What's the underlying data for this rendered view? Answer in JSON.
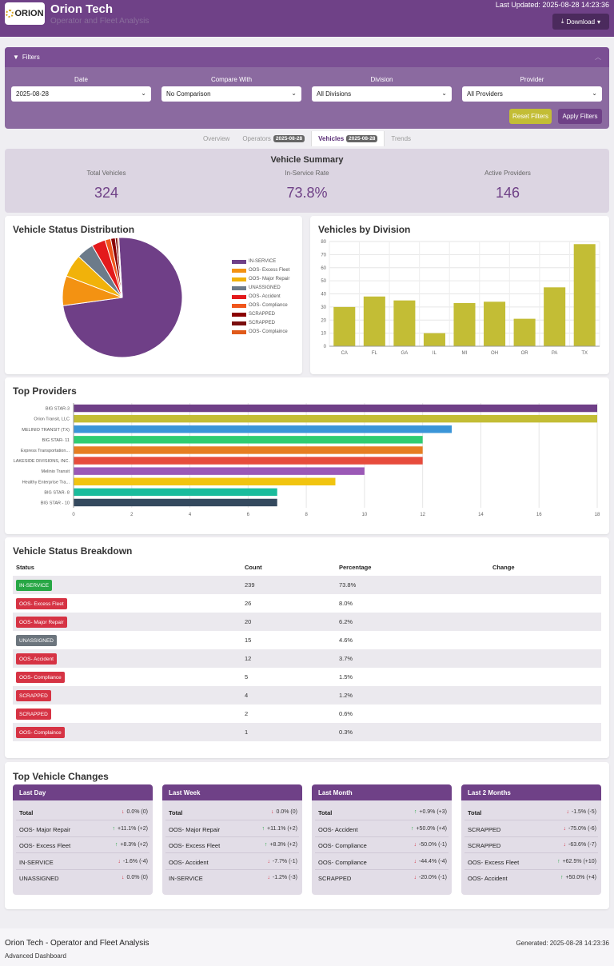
{
  "header": {
    "logo_text": "ORION",
    "title": "Orion Tech",
    "subtitle": "Operator and Fleet Analysis",
    "last_updated": "Last Updated: 2025-08-28 14:23:36",
    "download_label": "Download"
  },
  "filters": {
    "heading": "Filters",
    "date": {
      "label": "Date",
      "value": "2025-08-28"
    },
    "compare": {
      "label": "Compare With",
      "value": "No Comparison"
    },
    "division": {
      "label": "Division",
      "value": "All Divisions"
    },
    "provider": {
      "label": "Provider",
      "value": "All Providers"
    },
    "reset_label": "Reset Filters",
    "apply_label": "Apply Filters"
  },
  "tabs": [
    {
      "label": "Overview",
      "badge": ""
    },
    {
      "label": "Operators",
      "badge": "2025-08-28"
    },
    {
      "label": "Vehicles",
      "badge": "2025-08-28"
    },
    {
      "label": "Trends",
      "badge": ""
    }
  ],
  "summary": {
    "title": "Vehicle Summary",
    "total_label": "Total Vehicles",
    "total_value": "324",
    "rate_label": "In-Service Rate",
    "rate_value": "73.8%",
    "providers_label": "Active Providers",
    "providers_value": "146"
  },
  "colors": {
    "primary": "#6f4187",
    "accent": "#c3bd35",
    "danger": "#d63344",
    "success": "#28a745",
    "secondary": "#6c757d"
  },
  "chart_data": [
    {
      "type": "pie",
      "title": "Vehicle Status Distribution",
      "labels": [
        "IN-SERVICE",
        "OOS- Excess Fleet",
        "OOS- Major Repair",
        "UNASSIGNED",
        "OOS- Accident",
        "OOS- Compliance",
        "SCRAPPED",
        "SCRAPPED",
        "OOS- Complaince"
      ],
      "values": [
        239,
        26,
        20,
        15,
        12,
        5,
        4,
        2,
        1
      ],
      "colors": [
        "#6f3f87",
        "#f39212",
        "#f1b20a",
        "#6c7b8a",
        "#e31a1c",
        "#f0561c",
        "#8b0000",
        "#7a0d0d",
        "#e05a1a"
      ],
      "legend": "right"
    },
    {
      "type": "bar",
      "title": "Vehicles by Division",
      "categories": [
        "CA",
        "FL",
        "GA",
        "IL",
        "MI",
        "OH",
        "OR",
        "PA",
        "TX"
      ],
      "values": [
        30,
        38,
        35,
        10,
        33,
        34,
        21,
        45,
        78
      ],
      "ylim": [
        0,
        80
      ],
      "yticks": [
        0,
        10,
        20,
        30,
        40,
        50,
        60,
        70,
        80
      ],
      "color": "#c3bd35",
      "grid": true
    },
    {
      "type": "bar",
      "orientation": "horizontal",
      "title": "Top Providers",
      "categories": [
        "BIG STAR-3",
        "Orion Transit, LLC",
        "MELINIO TRANSIT (TX)",
        "BIG STAR- 11",
        "Express Transportation...",
        "LAKESIDE DIVISIONS, INC.",
        "Melinio Transit",
        "Healthy Enterprise Tra...",
        "BIG STAR- 8",
        "BIG STAR - 10"
      ],
      "values": [
        18,
        18,
        13,
        12,
        12,
        12,
        10,
        9,
        7,
        7
      ],
      "colors": [
        "#6f3f87",
        "#c3bd35",
        "#3a95d8",
        "#2ecc71",
        "#e67e22",
        "#e74c3c",
        "#9b59b6",
        "#f1c40f",
        "#1abc9c",
        "#34495e"
      ],
      "xlim": [
        0,
        18
      ],
      "xticks": [
        0,
        2,
        4,
        6,
        8,
        10,
        12,
        14,
        16,
        18
      ],
      "grid": true
    }
  ],
  "breakdown": {
    "title": "Vehicle Status Breakdown",
    "headers": [
      "Status",
      "Count",
      "Percentage",
      "Change"
    ],
    "rows": [
      {
        "status": "IN-SERVICE",
        "count": "239",
        "pct": "73.8%",
        "change": "",
        "color": "#28a745"
      },
      {
        "status": "OOS- Excess Fleet",
        "count": "26",
        "pct": "8.0%",
        "change": "",
        "color": "#d63344"
      },
      {
        "status": "OOS- Major Repair",
        "count": "20",
        "pct": "6.2%",
        "change": "",
        "color": "#d63344"
      },
      {
        "status": "UNASSIGNED",
        "count": "15",
        "pct": "4.6%",
        "change": "",
        "color": "#6c757d"
      },
      {
        "status": "OOS- Accident",
        "count": "12",
        "pct": "3.7%",
        "change": "",
        "color": "#d63344"
      },
      {
        "status": "OOS- Compliance",
        "count": "5",
        "pct": "1.5%",
        "change": "",
        "color": "#d63344"
      },
      {
        "status": "SCRAPPED",
        "count": "4",
        "pct": "1.2%",
        "change": "",
        "color": "#d63344"
      },
      {
        "status": "SCRAPPED",
        "count": "2",
        "pct": "0.6%",
        "change": "",
        "color": "#d63344"
      },
      {
        "status": "OOS- Complaince",
        "count": "1",
        "pct": "0.3%",
        "change": "",
        "color": "#d63344"
      }
    ]
  },
  "changes": {
    "title": "Top Vehicle Changes",
    "cards": [
      {
        "heading": "Last Day",
        "rows": [
          {
            "label": "Total",
            "dir": "down",
            "value": "0.0% (0)"
          },
          {
            "label": "OOS- Major Repair",
            "dir": "up",
            "value": "+11.1% (+2)"
          },
          {
            "label": "OOS- Excess Fleet",
            "dir": "up",
            "value": "+8.3% (+2)"
          },
          {
            "label": "IN-SERVICE",
            "dir": "down",
            "value": "-1.6% (-4)"
          },
          {
            "label": "UNASSIGNED",
            "dir": "down",
            "value": "0.0% (0)"
          }
        ]
      },
      {
        "heading": "Last Week",
        "rows": [
          {
            "label": "Total",
            "dir": "down",
            "value": "0.0% (0)"
          },
          {
            "label": "OOS- Major Repair",
            "dir": "up",
            "value": "+11.1% (+2)"
          },
          {
            "label": "OOS- Excess Fleet",
            "dir": "up",
            "value": "+8.3% (+2)"
          },
          {
            "label": "OOS- Accident",
            "dir": "down",
            "value": "-7.7% (-1)"
          },
          {
            "label": "IN-SERVICE",
            "dir": "down",
            "value": "-1.2% (-3)"
          }
        ]
      },
      {
        "heading": "Last Month",
        "rows": [
          {
            "label": "Total",
            "dir": "up",
            "value": "+0.9% (+3)"
          },
          {
            "label": "OOS- Accident",
            "dir": "up",
            "value": "+50.0% (+4)"
          },
          {
            "label": "OOS- Compliance",
            "dir": "down",
            "value": "-50.0% (-1)"
          },
          {
            "label": "OOS- Compliance",
            "dir": "down",
            "value": "-44.4% (-4)"
          },
          {
            "label": "SCRAPPED",
            "dir": "down",
            "value": "-20.0% (-1)"
          }
        ]
      },
      {
        "heading": "Last 2 Months",
        "rows": [
          {
            "label": "Total",
            "dir": "down",
            "value": "-1.5% (-5)"
          },
          {
            "label": "SCRAPPED",
            "dir": "down",
            "value": "-75.0% (-6)"
          },
          {
            "label": "SCRAPPED",
            "dir": "down",
            "value": "-63.6% (-7)"
          },
          {
            "label": "OOS- Excess Fleet",
            "dir": "up",
            "value": "+62.5% (+10)"
          },
          {
            "label": "OOS- Accident",
            "dir": "up",
            "value": "+50.0% (+4)"
          }
        ]
      }
    ]
  },
  "footer": {
    "title": "Orion Tech - Operator and Fleet Analysis",
    "subtitle": "Advanced Dashboard",
    "generated": "Generated: 2025-08-28 14:23:36"
  }
}
